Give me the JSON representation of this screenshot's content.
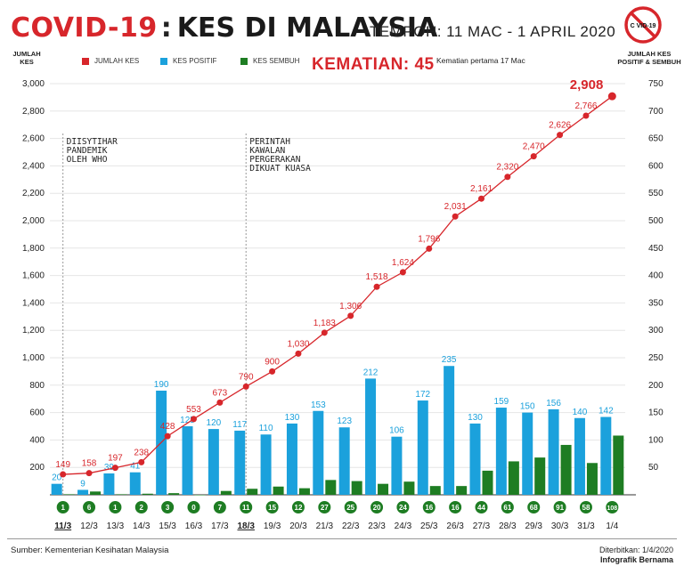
{
  "title": {
    "covid": "COVID-19",
    "colon": ":",
    "main": "KES DI MALAYSIA"
  },
  "period": "TEMPOH: 11 MAC - 1 APRIL 2020",
  "logo_text": "C VID-19",
  "left_axis_label": "JUMLAH KES",
  "right_axis_label": "JUMLAH KES POSITIF & SEMBUH",
  "legend": {
    "total": "JUMLAH KES",
    "positive": "KES POSITIF",
    "recovered": "KES SEMBUH"
  },
  "deaths": {
    "label": "KEMATIAN: 45",
    "note": "Kematian pertama 17 Mac"
  },
  "annotations": [
    {
      "text": "DIISYTIHAR PANDEMIK OLEH WHO",
      "date": "11/3"
    },
    {
      "text": "PERINTAH KAWALAN PERGERAKAN DIKUAT KUASA",
      "date": "18/3"
    }
  ],
  "colors": {
    "red": "#d7262b",
    "blue": "#1ba1dc",
    "green": "#1e7d23"
  },
  "chart_data": {
    "type": "bar",
    "categories": [
      "11/3",
      "12/3",
      "13/3",
      "14/3",
      "15/3",
      "16/3",
      "17/3",
      "18/3",
      "19/3",
      "20/3",
      "21/3",
      "22/3",
      "23/3",
      "24/3",
      "25/3",
      "26/3",
      "27/3",
      "28/3",
      "29/3",
      "30/3",
      "31/3",
      "1/4"
    ],
    "bold_categories": [
      "11/3",
      "18/3"
    ],
    "series": [
      {
        "name": "JUMLAH KES",
        "type": "line",
        "axis": "left",
        "values": [
          149,
          158,
          197,
          238,
          428,
          553,
          673,
          790,
          900,
          1030,
          1183,
          1306,
          1518,
          1624,
          1796,
          2031,
          2161,
          2320,
          2470,
          2626,
          2766,
          2908
        ]
      },
      {
        "name": "KES POSITIF",
        "type": "bar",
        "axis": "right",
        "values": [
          20,
          9,
          39,
          41,
          190,
          125,
          120,
          117,
          110,
          130,
          153,
          123,
          212,
          106,
          172,
          235,
          130,
          159,
          150,
          156,
          140,
          142
        ]
      },
      {
        "name": "KES SEMBUH",
        "type": "bar",
        "axis": "right",
        "values": [
          1,
          6,
          1,
          2,
          3,
          0,
          7,
          11,
          15,
          12,
          27,
          25,
          20,
          24,
          16,
          16,
          44,
          61,
          68,
          91,
          58,
          108
        ]
      }
    ],
    "recovered_labels": [
      "1",
      "6",
      "1",
      "2",
      "3",
      "0",
      "7",
      "11",
      "15",
      "12",
      "27",
      "25",
      "20",
      "24",
      "16",
      "16",
      "44",
      "61",
      "68",
      "91",
      "58",
      "108"
    ],
    "left_axis": {
      "ylim": [
        0,
        3000
      ],
      "ticks": [
        "200",
        "400",
        "600",
        "800",
        "1,000",
        "1,200",
        "1,400",
        "1,600",
        "1,800",
        "2,000",
        "2,200",
        "2,400",
        "2,600",
        "2,800",
        "3,000"
      ]
    },
    "right_axis": {
      "ylim": [
        0,
        750
      ],
      "ticks": [
        "50",
        "100",
        "150",
        "200",
        "250",
        "300",
        "350",
        "400",
        "450",
        "500",
        "550",
        "600",
        "650",
        "700",
        "750"
      ]
    },
    "line_labels": [
      "149",
      "158",
      "197",
      "238",
      "428",
      "553",
      "673",
      "790",
      "900",
      "1,030",
      "1,183",
      "1,306",
      "1,518",
      "1,624",
      "1,796",
      "2,031",
      "2,161",
      "2,320",
      "2,470",
      "2,626",
      "2,766",
      "2,908"
    ],
    "grid": true
  },
  "footer": {
    "source": "Sumber: Kementerian Kesihatan Malaysia",
    "published": "Diterbitkan: 1/4/2020",
    "credit": "Infografik Bernama"
  }
}
